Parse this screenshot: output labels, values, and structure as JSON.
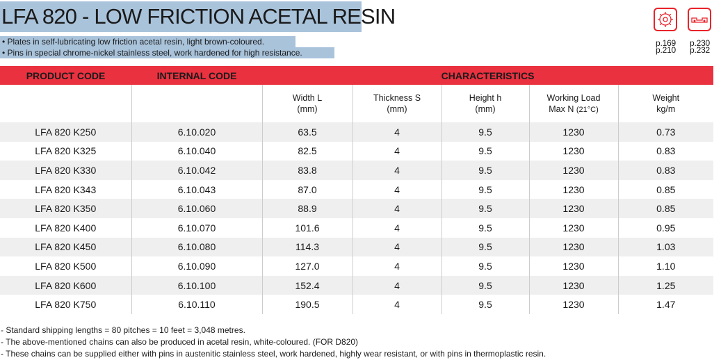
{
  "title": "LFA 820 - LOW FRICTION ACETAL RESIN",
  "intro": [
    "• Plates in self-lubricating low friction acetal resin, light brown-coloured.",
    "• Pins in special chrome-nickel stainless steel, work hardened for high resistance."
  ],
  "icons": [
    {
      "name": "sprocket-icon",
      "refs": [
        "p.169",
        "p.210"
      ],
      "color": "#e8232a"
    },
    {
      "name": "chain-link-icon",
      "refs": [
        "p.230",
        "p.232"
      ],
      "color": "#e8232a"
    }
  ],
  "table": {
    "header_color": "#ea3140",
    "headers": {
      "product_code": "PRODUCT CODE",
      "internal_code": "INTERNAL CODE",
      "characteristics": "CHARACTERISTICS"
    },
    "sub_headers": [
      {
        "line1": "Width L",
        "line2": "(mm)",
        "small": ""
      },
      {
        "line1": "Thickness S",
        "line2": "(mm)",
        "small": ""
      },
      {
        "line1": "Height h",
        "line2": "(mm)",
        "small": ""
      },
      {
        "line1": "Working Load",
        "line2": "Max N",
        "small": "(21°C)"
      },
      {
        "line1": "Weight",
        "line2": "kg/m",
        "small": ""
      }
    ],
    "rows": [
      [
        "LFA 820 K250",
        "6.10.020",
        "63.5",
        "4",
        "9.5",
        "1230",
        "0.73"
      ],
      [
        "LFA 820 K325",
        "6.10.040",
        "82.5",
        "4",
        "9.5",
        "1230",
        "0.83"
      ],
      [
        "LFA 820 K330",
        "6.10.042",
        "83.8",
        "4",
        "9.5",
        "1230",
        "0.83"
      ],
      [
        "LFA 820 K343",
        "6.10.043",
        "87.0",
        "4",
        "9.5",
        "1230",
        "0.85"
      ],
      [
        "LFA 820 K350",
        "6.10.060",
        "88.9",
        "4",
        "9.5",
        "1230",
        "0.85"
      ],
      [
        "LFA 820 K400",
        "6.10.070",
        "101.6",
        "4",
        "9.5",
        "1230",
        "0.95"
      ],
      [
        "LFA 820 K450",
        "6.10.080",
        "114.3",
        "4",
        "9.5",
        "1230",
        "1.03"
      ],
      [
        "LFA 820 K500",
        "6.10.090",
        "127.0",
        "4",
        "9.5",
        "1230",
        "1.10"
      ],
      [
        "LFA 820 K600",
        "6.10.100",
        "152.4",
        "4",
        "9.5",
        "1230",
        "1.25"
      ],
      [
        "LFA 820 K750",
        "6.10.110",
        "190.5",
        "4",
        "9.5",
        "1230",
        "1.47"
      ]
    ]
  },
  "notes": [
    "- Standard shipping lengths = 80 pitches = 10 feet = 3,048 metres.",
    "- The above-mentioned chains can also be produced in acetal resin, white-coloured. (FOR D820)",
    "- These chains can be supplied either with pins in austenitic stainless steel, work hardened, highly wear resistant, or with pins in thermoplastic resin."
  ]
}
